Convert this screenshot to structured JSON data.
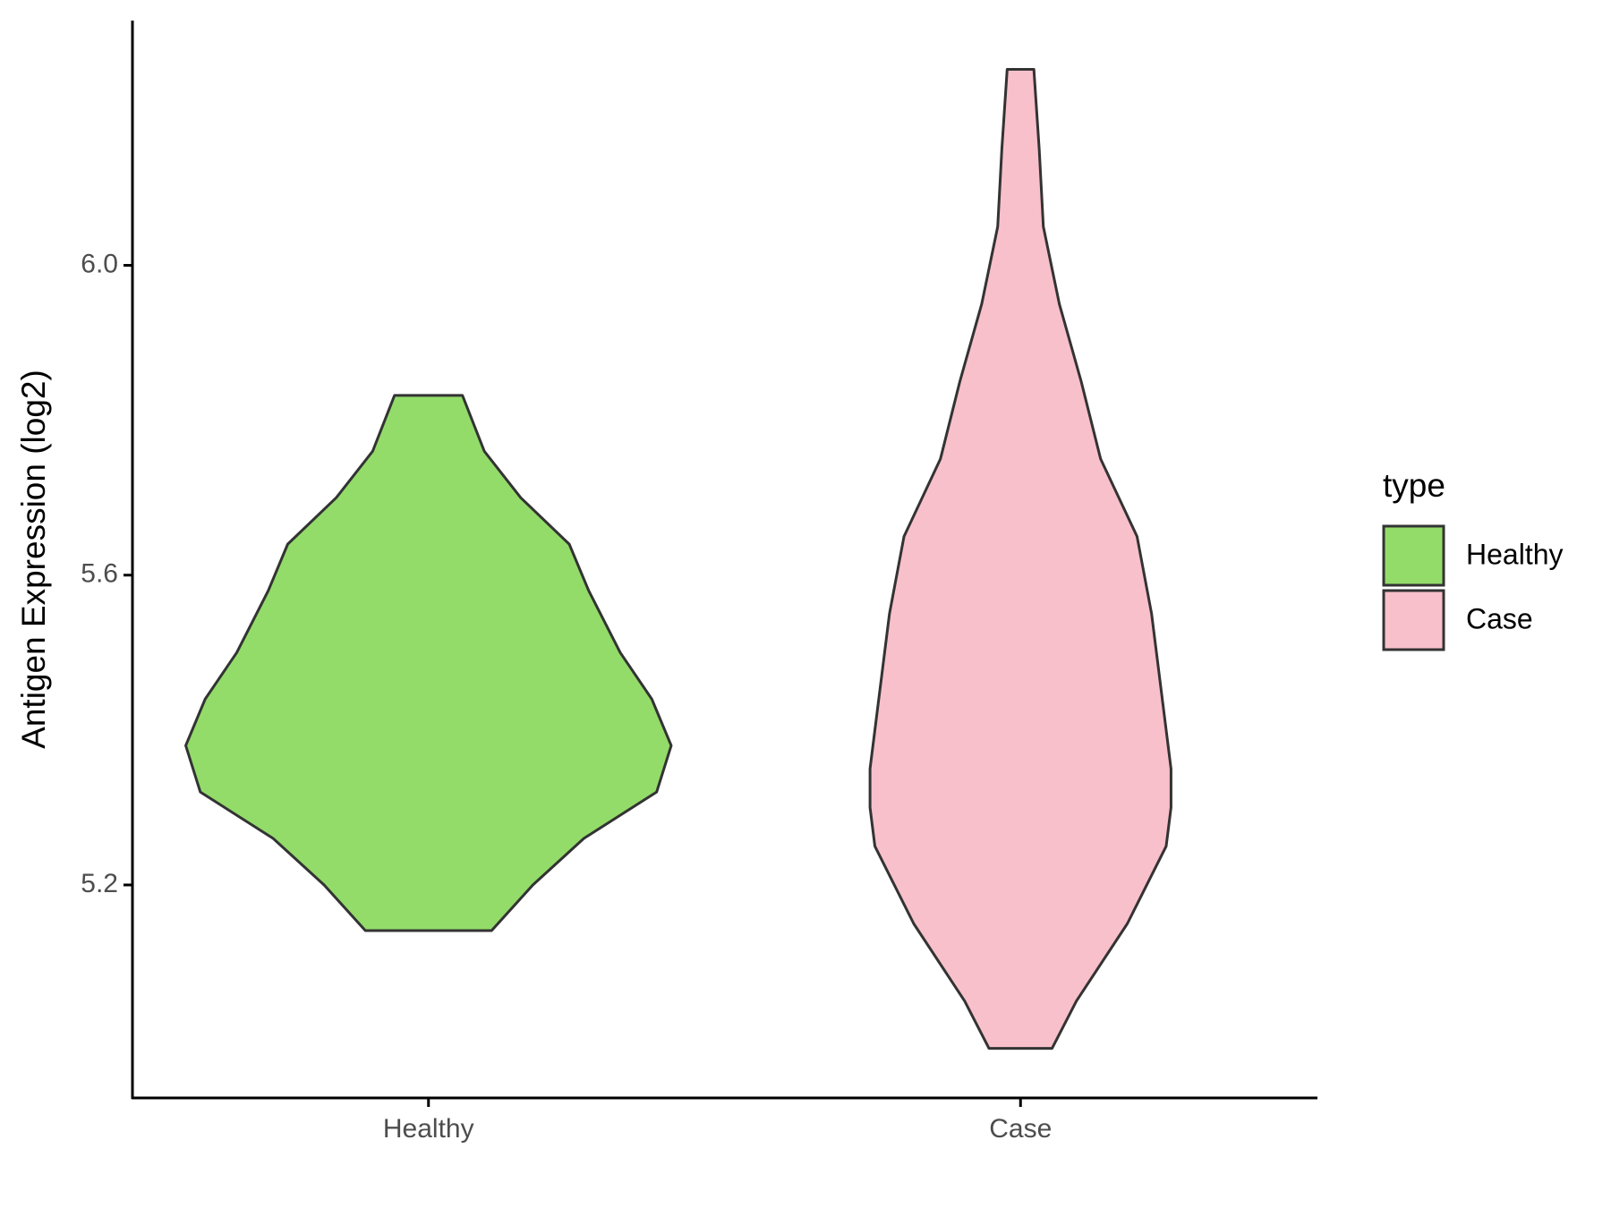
{
  "chart_data": {
    "type": "violin",
    "y_label": "Antigen Expression (log2)",
    "categories": [
      "Healthy",
      "Case"
    ],
    "legend_title": "type",
    "legend": "right",
    "series": [
      {
        "name": "Healthy",
        "color": "#93dc6a",
        "y": [
          5.832,
          5.76,
          5.7,
          5.64,
          5.58,
          5.5,
          5.44,
          5.38,
          5.32,
          5.26,
          5.2,
          5.141
        ],
        "width": [
          0.14,
          0.23,
          0.38,
          0.58,
          0.66,
          0.79,
          0.92,
          1.0,
          0.94,
          0.64,
          0.43,
          0.26
        ]
      },
      {
        "name": "Case",
        "color": "#f8c0cb",
        "y": [
          6.253,
          6.15,
          6.05,
          5.95,
          5.85,
          5.75,
          5.65,
          5.55,
          5.45,
          5.35,
          5.3,
          5.25,
          5.15,
          5.05,
          4.989
        ],
        "width": [
          0.055,
          0.077,
          0.094,
          0.16,
          0.25,
          0.33,
          0.48,
          0.54,
          0.58,
          0.62,
          0.62,
          0.6,
          0.44,
          0.23,
          0.13
        ]
      }
    ],
    "ylim": [
      4.925,
      6.316
    ],
    "yticks": [
      {
        "value": 5.2,
        "label": "5.2"
      },
      {
        "value": 5.6,
        "label": "5.6"
      },
      {
        "value": 6.0,
        "label": "6.0"
      }
    ]
  }
}
